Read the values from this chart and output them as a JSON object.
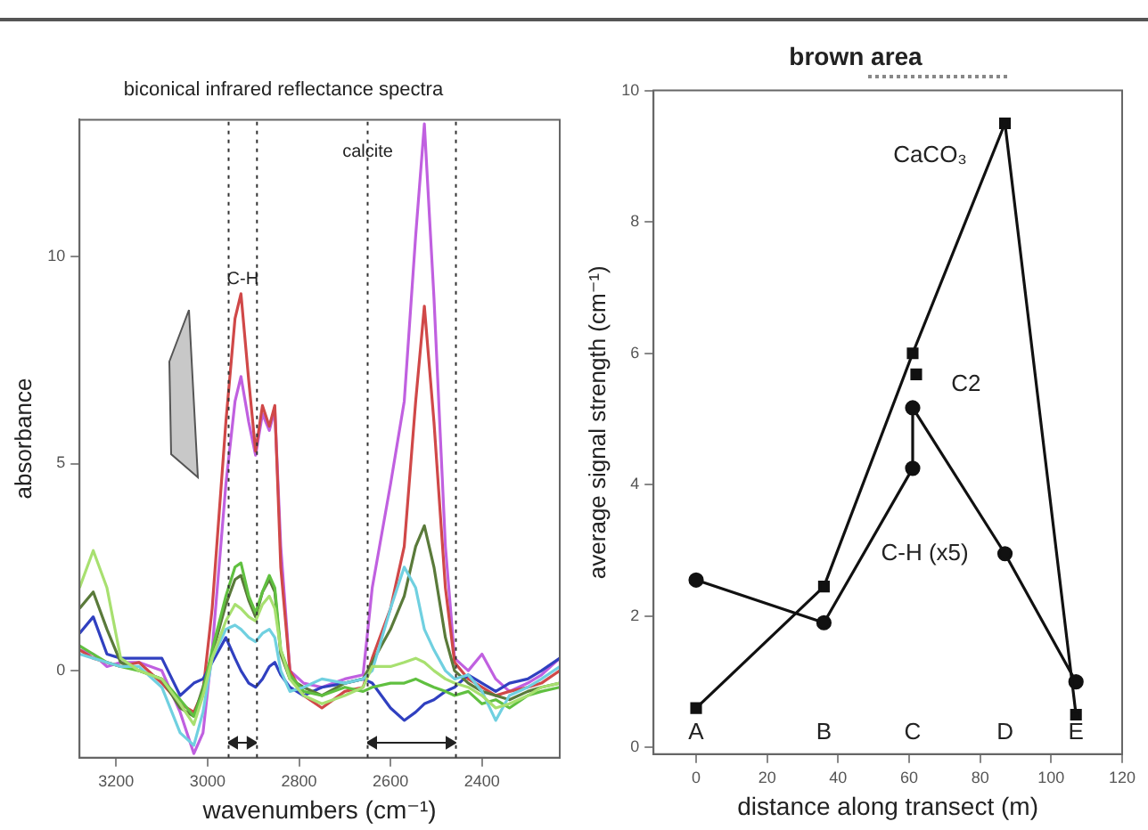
{
  "chart_data": [
    {
      "type": "line",
      "title": "biconical infrared reflectance spectra",
      "xlabel": "wavenumbers (cm⁻¹)",
      "ylabel": "absorbance",
      "x": [
        3280,
        3250,
        3220,
        3190,
        3150,
        3100,
        3060,
        3030,
        3010,
        2990,
        2960,
        2940,
        2927,
        2910,
        2895,
        2880,
        2865,
        2853,
        2840,
        2820,
        2790,
        2750,
        2700,
        2660,
        2640,
        2600,
        2570,
        2545,
        2526,
        2505,
        2480,
        2460,
        2430,
        2400,
        2370,
        2340,
        2300,
        2270,
        2230
      ],
      "xlim": [
        3280,
        2230
      ],
      "xticks": [
        3200,
        3000,
        2800,
        2600,
        2400
      ],
      "ylim": [
        -2.1,
        13.3
      ],
      "yticks": [
        0,
        5,
        10
      ],
      "grid": false,
      "legend": false,
      "marker": "none",
      "series": [
        {
          "color": "#a8e070",
          "values": [
            2.0,
            2.9,
            2.0,
            0.3,
            0.0,
            -0.2,
            -0.8,
            -1.3,
            -0.6,
            0.3,
            1.2,
            1.6,
            1.5,
            1.3,
            1.2,
            1.6,
            1.8,
            1.5,
            0.5,
            -0.2,
            -0.6,
            -0.8,
            -0.6,
            -0.4,
            0.1,
            0.1,
            0.2,
            0.3,
            0.2,
            0.0,
            -0.2,
            -0.3,
            -0.4,
            -0.6,
            -0.9,
            -0.8,
            -0.6,
            -0.4,
            -0.3
          ]
        },
        {
          "color": "#70d0e0",
          "values": [
            0.4,
            0.3,
            0.2,
            0.1,
            0.1,
            -0.4,
            -1.5,
            -1.8,
            -1.0,
            0.3,
            1.0,
            1.1,
            1.0,
            0.8,
            0.7,
            0.9,
            1.0,
            0.8,
            0.0,
            -0.5,
            -0.4,
            -0.2,
            -0.3,
            -0.2,
            0.0,
            1.5,
            2.5,
            2.0,
            1.0,
            0.5,
            0.0,
            -0.2,
            -0.1,
            -0.5,
            -1.2,
            -0.6,
            -0.4,
            -0.2,
            0.1
          ]
        },
        {
          "color": "#60c040",
          "values": [
            0.6,
            0.4,
            0.2,
            0.1,
            0.0,
            -0.2,
            -0.7,
            -1.1,
            -0.5,
            0.5,
            1.8,
            2.5,
            2.6,
            1.8,
            1.4,
            1.9,
            2.3,
            2.0,
            0.5,
            -0.1,
            -0.5,
            -0.6,
            -0.4,
            -0.5,
            -0.4,
            -0.3,
            -0.3,
            -0.2,
            -0.3,
            -0.4,
            -0.5,
            -0.6,
            -0.5,
            -0.8,
            -0.7,
            -0.9,
            -0.6,
            -0.5,
            -0.4
          ]
        },
        {
          "color": "#5a7a3a",
          "values": [
            1.5,
            1.9,
            1.0,
            0.2,
            0.0,
            -0.2,
            -0.9,
            -1.1,
            -0.4,
            0.4,
            1.6,
            2.2,
            2.3,
            1.7,
            1.3,
            1.9,
            2.2,
            1.9,
            0.4,
            -0.2,
            -0.4,
            -0.6,
            -0.3,
            -0.2,
            0.2,
            1.0,
            1.8,
            3.0,
            3.5,
            2.5,
            0.8,
            0.0,
            -0.3,
            -0.5,
            -0.6,
            -0.7,
            -0.5,
            -0.4,
            -0.3
          ]
        },
        {
          "color": "#3040c0",
          "values": [
            0.9,
            1.3,
            0.4,
            0.3,
            0.3,
            0.3,
            -0.6,
            -0.3,
            -0.2,
            0.2,
            0.8,
            0.3,
            0.0,
            -0.3,
            -0.4,
            -0.2,
            0.1,
            0.2,
            -0.1,
            -0.4,
            -0.6,
            -0.4,
            -0.3,
            -0.2,
            -0.3,
            -0.9,
            -1.2,
            -1.0,
            -0.8,
            -0.7,
            -0.5,
            -0.4,
            -0.1,
            -0.3,
            -0.5,
            -0.3,
            -0.2,
            0.0,
            0.3
          ]
        },
        {
          "color": "#d04848",
          "values": [
            0.5,
            0.3,
            0.2,
            0.1,
            0.2,
            -0.3,
            -0.8,
            -1.0,
            -0.5,
            1.5,
            6.0,
            8.5,
            9.1,
            7.0,
            5.3,
            6.4,
            5.9,
            6.4,
            2.5,
            0.0,
            -0.6,
            -0.9,
            -0.5,
            -0.4,
            0.3,
            1.5,
            3.0,
            6.5,
            8.8,
            6.0,
            2.0,
            0.2,
            -0.2,
            -0.4,
            -0.6,
            -0.5,
            -0.4,
            -0.3,
            0.0
          ]
        },
        {
          "color": "#c060e0",
          "values": [
            0.5,
            0.4,
            0.1,
            0.2,
            0.2,
            0.0,
            -1.0,
            -2.0,
            -1.5,
            0.5,
            4.5,
            6.5,
            7.1,
            6.0,
            5.2,
            6.2,
            5.8,
            6.3,
            3.0,
            0.0,
            -0.3,
            -0.4,
            -0.2,
            -0.1,
            2.0,
            4.5,
            6.5,
            10.5,
            13.2,
            9.0,
            3.0,
            0.3,
            0.0,
            0.4,
            -0.2,
            -0.5,
            -0.3,
            -0.1,
            0.3
          ]
        }
      ],
      "ref_lines": [
        {
          "axis": "x",
          "value": 2954,
          "line_style": "dotted",
          "color": "#333333"
        },
        {
          "axis": "x",
          "value": 2892,
          "line_style": "dotted",
          "color": "#333333"
        },
        {
          "axis": "x",
          "value": 2650,
          "line_style": "dotted",
          "color": "#333333"
        },
        {
          "axis": "x",
          "value": 2457,
          "line_style": "dotted",
          "color": "#333333"
        }
      ],
      "annotations": [
        "C-H",
        "calcite"
      ]
    },
    {
      "type": "line",
      "title": "brown area",
      "xlabel": "distance along transect (m)",
      "ylabel": "average signal strength (cm⁻¹)",
      "xlim": [
        -12,
        120
      ],
      "xticks": [
        0,
        20,
        40,
        60,
        80,
        100,
        120
      ],
      "ylim": [
        -0.1,
        10
      ],
      "yticks": [
        0,
        2,
        4,
        6,
        8,
        10
      ],
      "grid": false,
      "legend": false,
      "series": [
        {
          "name": "CaCO₃",
          "color": "#111111",
          "marker": "square",
          "x": [
            0,
            36,
            61,
            87,
            107
          ],
          "values": [
            0.6,
            2.45,
            6.0,
            9.5,
            0.5
          ]
        },
        {
          "name": "C-H (x5)",
          "color": "#111111",
          "marker": "circle",
          "x": [
            0,
            36,
            61,
            61,
            87,
            107
          ],
          "values": [
            2.55,
            1.9,
            4.25,
            5.17,
            2.95,
            1.0
          ]
        },
        {
          "name": "C2",
          "type": "scatter",
          "color": "#111111",
          "marker": "square",
          "x": [
            62
          ],
          "values": [
            5.68
          ]
        }
      ],
      "annotations": [
        "A",
        "B",
        "C",
        "D",
        "E"
      ]
    }
  ]
}
